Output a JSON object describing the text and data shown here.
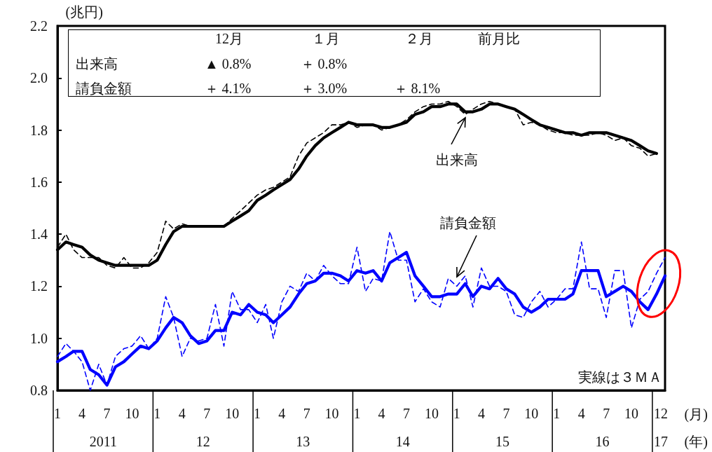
{
  "chart_data": {
    "type": "line",
    "ylabel": "(兆円)",
    "x": [
      "2011-01",
      "2011-02",
      "2011-03",
      "2011-04",
      "2011-05",
      "2011-06",
      "2011-07",
      "2011-08",
      "2011-09",
      "2011-10",
      "2011-11",
      "2011-12",
      "2012-01",
      "2012-02",
      "2012-03",
      "2012-04",
      "2012-05",
      "2012-06",
      "2012-07",
      "2012-08",
      "2012-09",
      "2012-10",
      "2012-11",
      "2012-12",
      "2013-01",
      "2013-02",
      "2013-03",
      "2013-04",
      "2013-05",
      "2013-06",
      "2013-07",
      "2013-08",
      "2013-09",
      "2013-10",
      "2013-11",
      "2013-12",
      "2014-01",
      "2014-02",
      "2014-03",
      "2014-04",
      "2014-05",
      "2014-06",
      "2014-07",
      "2014-08",
      "2014-09",
      "2014-10",
      "2014-11",
      "2014-12",
      "2015-01",
      "2015-02",
      "2015-03",
      "2015-04",
      "2015-05",
      "2015-06",
      "2015-07",
      "2015-08",
      "2015-09",
      "2015-10",
      "2015-11",
      "2015-12",
      "2016-01",
      "2016-02",
      "2016-03",
      "2016-04",
      "2016-05",
      "2016-06",
      "2016-07",
      "2016-08",
      "2016-09",
      "2016-10",
      "2016-11",
      "2016-12",
      "2017-01",
      "2017-02"
    ],
    "series": [
      {
        "color": "#000000",
        "line_style": "dashed",
        "values": [
          1.35,
          1.4,
          1.34,
          1.31,
          1.31,
          1.31,
          1.28,
          1.27,
          1.31,
          1.27,
          1.27,
          1.29,
          1.33,
          1.45,
          1.42,
          1.44,
          1.43,
          1.43,
          1.43,
          1.43,
          1.43,
          1.46,
          1.49,
          1.52,
          1.55,
          1.57,
          1.58,
          1.6,
          1.62,
          1.7,
          1.75,
          1.77,
          1.79,
          1.82,
          1.82,
          1.83,
          1.81,
          1.82,
          1.82,
          1.8,
          1.81,
          1.82,
          1.84,
          1.87,
          1.89,
          1.9,
          1.9,
          1.91,
          1.89,
          1.86,
          1.88,
          1.9,
          1.91,
          1.9,
          1.89,
          1.88,
          1.82,
          1.83,
          1.82,
          1.8,
          1.79,
          1.79,
          1.78,
          1.78,
          1.78,
          1.79,
          1.78,
          1.76,
          1.77,
          1.74,
          1.73,
          1.7,
          1.71,
          null
        ]
      },
      {
        "color": "#000000",
        "line_style": "solid",
        "values": [
          1.34,
          1.37,
          1.36,
          1.35,
          1.32,
          1.3,
          1.29,
          1.28,
          1.28,
          1.28,
          1.28,
          1.28,
          1.3,
          1.36,
          1.41,
          1.43,
          1.43,
          1.43,
          1.43,
          1.43,
          1.43,
          1.45,
          1.47,
          1.49,
          1.53,
          1.55,
          1.57,
          1.59,
          1.61,
          1.65,
          1.7,
          1.74,
          1.77,
          1.79,
          1.81,
          1.83,
          1.82,
          1.82,
          1.82,
          1.81,
          1.81,
          1.82,
          1.83,
          1.86,
          1.87,
          1.89,
          1.89,
          1.9,
          1.9,
          1.87,
          1.87,
          1.88,
          1.9,
          1.9,
          1.89,
          1.88,
          1.86,
          1.84,
          1.82,
          1.81,
          1.8,
          1.79,
          1.79,
          1.78,
          1.79,
          1.79,
          1.79,
          1.78,
          1.77,
          1.76,
          1.74,
          1.72,
          1.71,
          null
        ]
      },
      {
        "color": "#0000ff",
        "line_style": "dashed",
        "values": [
          0.93,
          0.98,
          0.95,
          0.91,
          0.8,
          0.9,
          0.82,
          0.93,
          0.96,
          0.97,
          1.01,
          0.96,
          1.0,
          1.16,
          1.08,
          0.93,
          1.0,
          0.99,
          1.0,
          1.13,
          0.97,
          1.18,
          1.11,
          1.11,
          1.06,
          1.13,
          1.0,
          1.14,
          1.2,
          1.18,
          1.25,
          1.22,
          1.28,
          1.24,
          1.21,
          1.21,
          1.35,
          1.18,
          1.23,
          1.22,
          1.41,
          1.3,
          1.3,
          1.14,
          1.19,
          1.14,
          1.12,
          1.23,
          1.2,
          1.24,
          1.12,
          1.27,
          1.2,
          1.2,
          1.18,
          1.09,
          1.08,
          1.14,
          1.18,
          1.12,
          1.15,
          1.19,
          1.19,
          1.37,
          1.19,
          1.19,
          1.08,
          1.26,
          1.26,
          1.04,
          1.15,
          1.18,
          1.25,
          1.31
        ]
      },
      {
        "color": "#0000ff",
        "line_style": "solid",
        "values": [
          0.91,
          0.93,
          0.95,
          0.95,
          0.88,
          0.86,
          0.82,
          0.89,
          0.91,
          0.94,
          0.97,
          0.96,
          0.99,
          1.04,
          1.08,
          1.06,
          1.01,
          0.98,
          0.99,
          1.03,
          1.03,
          1.1,
          1.09,
          1.13,
          1.1,
          1.09,
          1.06,
          1.09,
          1.12,
          1.17,
          1.21,
          1.22,
          1.25,
          1.25,
          1.24,
          1.22,
          1.26,
          1.25,
          1.26,
          1.22,
          1.29,
          1.31,
          1.33,
          1.24,
          1.2,
          1.16,
          1.16,
          1.17,
          1.17,
          1.21,
          1.16,
          1.2,
          1.19,
          1.23,
          1.19,
          1.17,
          1.12,
          1.1,
          1.12,
          1.15,
          1.15,
          1.15,
          1.17,
          1.26,
          1.26,
          1.26,
          1.16,
          1.18,
          1.2,
          1.18,
          1.14,
          1.11,
          1.17,
          1.24
        ]
      }
    ],
    "xlim": [
      "2011-01",
      "2017-02"
    ],
    "xticks": [
      {
        "value": "2011-01",
        "label": "1"
      },
      {
        "value": "2011-04",
        "label": "4"
      },
      {
        "value": "2011-07",
        "label": "7"
      },
      {
        "value": "2011-10",
        "label": "10"
      },
      {
        "value": "2012-01",
        "label": "1"
      },
      {
        "value": "2012-04",
        "label": "4"
      },
      {
        "value": "2012-07",
        "label": "7"
      },
      {
        "value": "2012-10",
        "label": "10"
      },
      {
        "value": "2013-01",
        "label": "1"
      },
      {
        "value": "2013-04",
        "label": "4"
      },
      {
        "value": "2013-07",
        "label": "7"
      },
      {
        "value": "2013-10",
        "label": "10"
      },
      {
        "value": "2014-01",
        "label": "1"
      },
      {
        "value": "2014-04",
        "label": "4"
      },
      {
        "value": "2014-07",
        "label": "7"
      },
      {
        "value": "2014-10",
        "label": "10"
      },
      {
        "value": "2015-01",
        "label": "1"
      },
      {
        "value": "2015-04",
        "label": "4"
      },
      {
        "value": "2015-07",
        "label": "7"
      },
      {
        "value": "2015-10",
        "label": "10"
      },
      {
        "value": "2016-01",
        "label": "1"
      },
      {
        "value": "2016-04",
        "label": "4"
      },
      {
        "value": "2016-07",
        "label": "7"
      },
      {
        "value": "2016-10",
        "label": "10"
      },
      {
        "value": "2017-01",
        "label": "12"
      }
    ],
    "ylim": [
      0.8,
      2.2
    ],
    "yticks": [
      {
        "value": 0.8,
        "label": "0.8"
      },
      {
        "value": 1.0,
        "label": "1.0"
      },
      {
        "value": 1.2,
        "label": "1.2"
      },
      {
        "value": 1.4,
        "label": "1.4"
      },
      {
        "value": 1.6,
        "label": "1.6"
      },
      {
        "value": 1.8,
        "label": "1.8"
      },
      {
        "value": 2.0,
        "label": "2.0"
      },
      {
        "value": 2.2,
        "label": "2.2"
      }
    ],
    "grid": false,
    "marker": "none",
    "annotations": [
      "12月",
      "１月",
      "２月",
      "前月比",
      "出来高",
      "▲ 0.8%",
      "＋ 0.8%",
      "請負金額",
      "＋ 4.1%",
      "＋ 3.0%",
      "＋ 8.1%",
      "実線は３ＭＡ",
      "(月)",
      "(年)",
      "出来高",
      "請負金額",
      "2011",
      "12",
      "13",
      "14",
      "15",
      "16",
      "17"
    ]
  }
}
